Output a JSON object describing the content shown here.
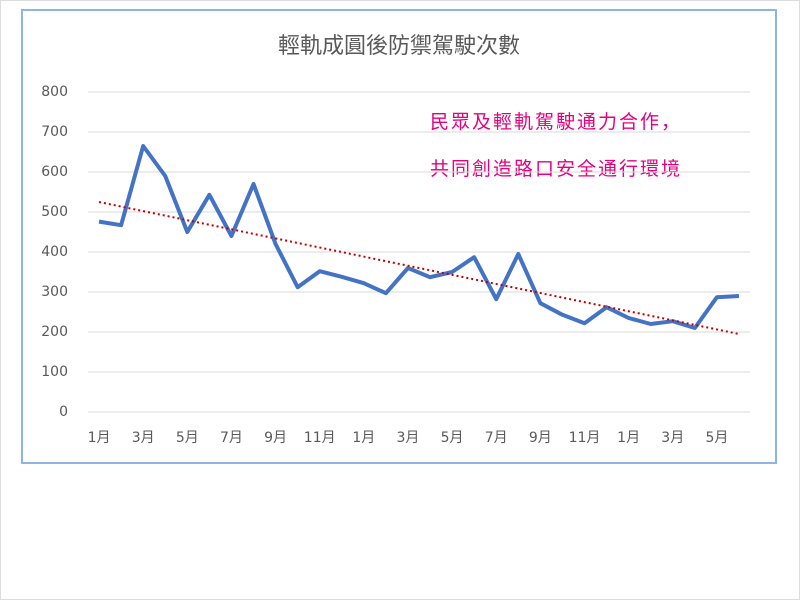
{
  "chart_data": {
    "type": "line",
    "title": "輕軌成圓後防禦駕駛次數",
    "annotations": [
      "民眾及輕軌駕駛通力合作，",
      "共同創造路口安全通行環境"
    ],
    "categories": [
      "1月",
      null,
      "3月",
      null,
      "5月",
      null,
      "7月",
      null,
      "9月",
      null,
      "11月",
      null,
      "1月",
      null,
      "3月",
      null,
      "5月",
      null,
      "7月",
      null,
      "9月",
      null,
      "11月",
      null,
      "1月",
      null,
      "3月",
      null,
      "5月",
      null
    ],
    "series": [
      {
        "color": "#4472c4",
        "values": [
          476,
          467,
          665,
          590,
          450,
          543,
          440,
          570,
          420,
          312,
          352,
          338,
          322,
          297,
          360,
          337,
          350,
          387,
          282,
          395,
          272,
          243,
          222,
          262,
          235,
          220,
          227,
          210,
          287,
          290
        ]
      }
    ],
    "trendline": {
      "color": "#c00000",
      "values": [
        525,
        195
      ]
    },
    "ylim": [
      0,
      800
    ],
    "yticks": [
      0,
      100,
      200,
      300,
      400,
      500,
      600,
      700,
      800
    ],
    "grid": true
  }
}
